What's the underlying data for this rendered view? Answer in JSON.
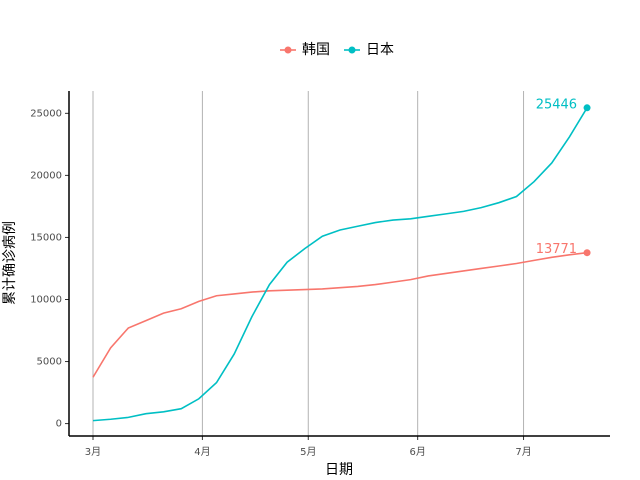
{
  "chart_data": {
    "type": "line",
    "x_label": "日期",
    "y_label": "累计确诊病例",
    "x": [
      0,
      5,
      10,
      15,
      20,
      25,
      30,
      35,
      40,
      45,
      50,
      55,
      60,
      65,
      70,
      75,
      80,
      85,
      90,
      95,
      100,
      105,
      110,
      115,
      120,
      125,
      130,
      135,
      140
    ],
    "series": [
      {
        "name": "韩国",
        "color": "#F8766D",
        "values": [
          3736,
          6100,
          7700,
          8300,
          8900,
          9250,
          9850,
          10300,
          10450,
          10600,
          10700,
          10750,
          10800,
          10850,
          10950,
          11050,
          11200,
          11400,
          11600,
          11900,
          12100,
          12300,
          12500,
          12700,
          12900,
          13150,
          13400,
          13600,
          13771
        ]
      },
      {
        "name": "日本",
        "color": "#00BFC4",
        "values": [
          240,
          350,
          500,
          800,
          950,
          1200,
          2000,
          3300,
          5600,
          8600,
          11200,
          13000,
          14100,
          15100,
          15600,
          15900,
          16200,
          16400,
          16500,
          16700,
          16900,
          17100,
          17400,
          17800,
          18300,
          19500,
          21000,
          23100,
          25446
        ]
      }
    ],
    "xlim": [
      -6.8,
      146.5
    ],
    "xticks": [
      {
        "value": 0,
        "label": "3月"
      },
      {
        "value": 31,
        "label": "4月"
      },
      {
        "value": 61,
        "label": "5月"
      },
      {
        "value": 92,
        "label": "6月"
      },
      {
        "value": 122,
        "label": "7月"
      }
    ],
    "ylim": [
      -1000,
      26800
    ],
    "yticks": [
      0,
      5000,
      10000,
      15000,
      20000,
      25000
    ],
    "grid": "x",
    "legend": "top"
  }
}
